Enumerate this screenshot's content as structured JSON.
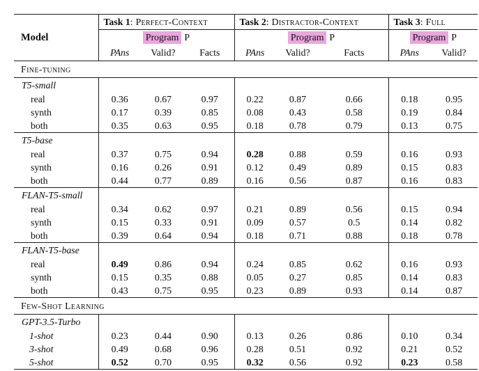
{
  "accent": {
    "highlight_color": "#eba6de",
    "rule_color": "#1c1c1c"
  },
  "header": {
    "model_label": "Model",
    "colon": ":",
    "tasks": [
      {
        "title": "Task 1",
        "context": "Perfect-Context",
        "program_label": "Program",
        "program_suffix": "P",
        "columns": [
          "PAns",
          "Valid?",
          "Facts"
        ]
      },
      {
        "title": "Task 2",
        "context": "Distractor-Context",
        "program_label": "Program",
        "program_suffix": "P",
        "columns": [
          "PAns",
          "Valid?",
          "Facts"
        ]
      },
      {
        "title": "Task 3",
        "context": "Full",
        "program_label": "Program",
        "program_suffix": "P",
        "columns": [
          "PAns",
          "Valid?"
        ]
      }
    ]
  },
  "sections": [
    {
      "label": "Fine-tuning",
      "groups": [
        {
          "name": "T5-small",
          "rows": [
            {
              "label": "real",
              "values": [
                "0.36",
                "0.67",
                "0.97",
                "0.22",
                "0.87",
                "0.66",
                "0.18",
                "0.95"
              ],
              "bold": []
            },
            {
              "label": "synth",
              "values": [
                "0.17",
                "0.39",
                "0.85",
                "0.08",
                "0.43",
                "0.58",
                "0.19",
                "0.84"
              ],
              "bold": []
            },
            {
              "label": "both",
              "values": [
                "0.35",
                "0.63",
                "0.95",
                "0.18",
                "0.78",
                "0.79",
                "0.13",
                "0.75"
              ],
              "bold": []
            }
          ]
        },
        {
          "name": "T5-base",
          "rows": [
            {
              "label": "real",
              "values": [
                "0.37",
                "0.75",
                "0.94",
                "0.28",
                "0.88",
                "0.59",
                "0.16",
                "0.93"
              ],
              "bold": [
                3
              ]
            },
            {
              "label": "synth",
              "values": [
                "0.16",
                "0.26",
                "0.91",
                "0.12",
                "0.49",
                "0.89",
                "0.15",
                "0.83"
              ],
              "bold": []
            },
            {
              "label": "both",
              "values": [
                "0.44",
                "0.77",
                "0.89",
                "0.16",
                "0.56",
                "0.87",
                "0.16",
                "0.83"
              ],
              "bold": []
            }
          ]
        },
        {
          "name": "FLAN-T5-small",
          "rows": [
            {
              "label": "real",
              "values": [
                "0.34",
                "0.62",
                "0.97",
                "0.21",
                "0.89",
                "0.56",
                "0.15",
                "0.94"
              ],
              "bold": []
            },
            {
              "label": "synth",
              "values": [
                "0.15",
                "0.33",
                "0.91",
                "0.09",
                "0.57",
                "0.5",
                "0.14",
                "0.82"
              ],
              "bold": []
            },
            {
              "label": "both",
              "values": [
                "0.39",
                "0.64",
                "0.94",
                "0.18",
                "0.71",
                "0.88",
                "0.18",
                "0.78"
              ],
              "bold": []
            }
          ]
        },
        {
          "name": "FLAN-T5-base",
          "rows": [
            {
              "label": "real",
              "values": [
                "0.49",
                "0.86",
                "0.94",
                "0.24",
                "0.85",
                "0.62",
                "0.16",
                "0.93"
              ],
              "bold": [
                0
              ]
            },
            {
              "label": "synth",
              "values": [
                "0.15",
                "0.35",
                "0.88",
                "0.05",
                "0.27",
                "0.85",
                "0.14",
                "0.83"
              ],
              "bold": []
            },
            {
              "label": "both",
              "values": [
                "0.43",
                "0.75",
                "0.95",
                "0.23",
                "0.89",
                "0.93",
                "0.14",
                "0.87"
              ],
              "bold": []
            }
          ]
        }
      ]
    },
    {
      "label": "Few-Shot Learning",
      "groups": [
        {
          "name": "GPT-3.5-Turbo",
          "rows": [
            {
              "label": "1-shot",
              "italic": true,
              "values": [
                "0.23",
                "0.44",
                "0.90",
                "0.13",
                "0.26",
                "0.86",
                "0.10",
                "0.34"
              ],
              "bold": []
            },
            {
              "label": "3-shot",
              "italic": true,
              "values": [
                "0.49",
                "0.68",
                "0.96",
                "0.28",
                "0.51",
                "0.92",
                "0.21",
                "0.52"
              ],
              "bold": []
            },
            {
              "label": "5-shot",
              "italic": true,
              "values": [
                "0.52",
                "0.70",
                "0.95",
                "0.32",
                "0.56",
                "0.92",
                "0.23",
                "0.58"
              ],
              "bold": [
                0,
                3,
                6
              ]
            }
          ]
        }
      ]
    }
  ]
}
